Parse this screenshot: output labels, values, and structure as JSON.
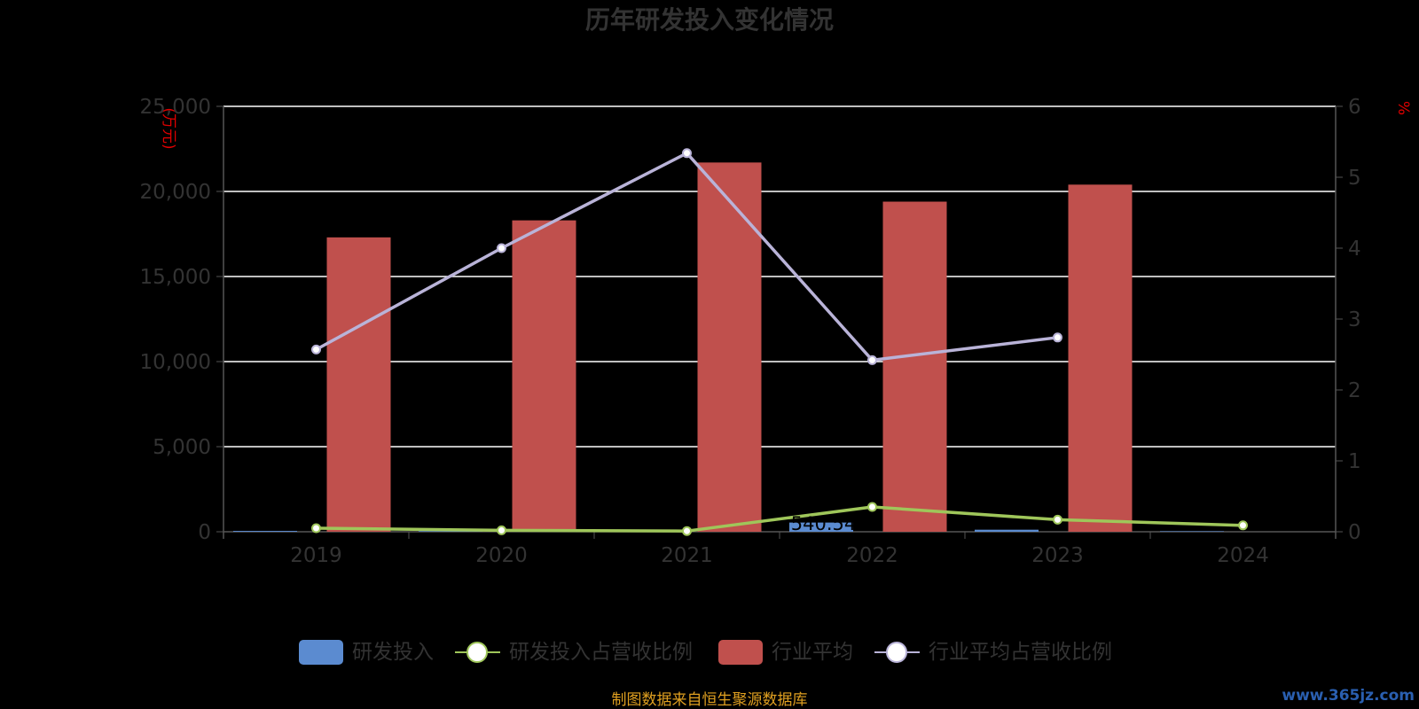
{
  "title": "历年研发投入变化情况",
  "left_unit": "(万元)",
  "right_unit": "%",
  "source_note": "制图数据来自恒生聚源数据库",
  "watermark": "www.365jz.com",
  "colors": {
    "rd": "#5b8bd0",
    "rd_ratio": "#9fc65a",
    "industry": "#c0504d",
    "industry_ratio": "#b9b3d8",
    "grid": "#ffffff",
    "axis": "#555555"
  },
  "chart_data": {
    "type": "bar+line",
    "categories": [
      "2019",
      "2020",
      "2021",
      "2022",
      "2023",
      "2024"
    ],
    "y_left": {
      "min": 0,
      "max": 25000,
      "ticks": [
        "0",
        "5,000",
        "10,000",
        "15,000",
        "20,000",
        "25,000"
      ]
    },
    "y_right": {
      "min": 0,
      "max": 6,
      "ticks": [
        "0",
        "1",
        "2",
        "3",
        "4",
        "5",
        "6"
      ]
    },
    "series": [
      {
        "name": "研发投入",
        "kind": "bar",
        "axis": "left",
        "values": [
          50,
          40,
          60,
          540.54,
          120,
          30
        ],
        "labels": [
          "",
          "",
          "",
          "540.54",
          "",
          ""
        ]
      },
      {
        "name": "研发投入占营收比例",
        "kind": "line",
        "axis": "right",
        "values": [
          0.05,
          0.02,
          0.01,
          0.35,
          0.17,
          0.09
        ]
      },
      {
        "name": "行业平均",
        "kind": "bar",
        "axis": "left",
        "values": [
          17300,
          18300,
          21700,
          19400,
          20400,
          null
        ]
      },
      {
        "name": "行业平均占营收比例",
        "kind": "line",
        "axis": "right",
        "values": [
          2.57,
          4.0,
          5.34,
          2.42,
          2.74,
          null
        ]
      }
    ],
    "legend": {
      "position": "bottom"
    },
    "grid": true
  }
}
